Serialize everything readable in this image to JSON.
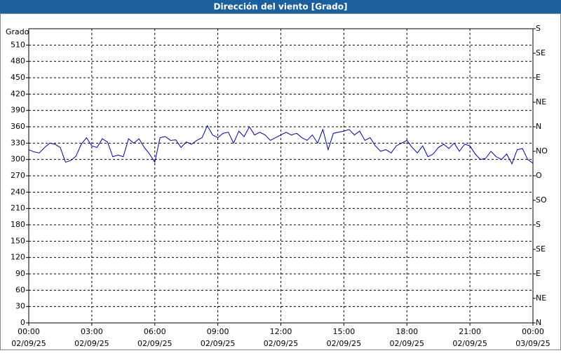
{
  "chart_data": {
    "type": "line",
    "title": "Dirección del viento [Grado]",
    "y_label": "Grado",
    "x": [
      0,
      0.25,
      0.5,
      0.75,
      1,
      1.25,
      1.5,
      1.75,
      2,
      2.25,
      2.5,
      2.75,
      3,
      3.25,
      3.5,
      3.75,
      4,
      4.25,
      4.5,
      4.75,
      5,
      5.25,
      5.5,
      5.75,
      6,
      6.25,
      6.5,
      6.75,
      7,
      7.25,
      7.5,
      7.75,
      8,
      8.25,
      8.5,
      8.75,
      9,
      9.25,
      9.5,
      9.75,
      10,
      10.25,
      10.5,
      10.75,
      11,
      11.25,
      11.5,
      11.75,
      12,
      12.25,
      12.5,
      12.75,
      13,
      13.25,
      13.5,
      13.75,
      14,
      14.25,
      14.5,
      14.75,
      15,
      15.25,
      15.5,
      15.75,
      16,
      16.25,
      16.5,
      16.75,
      17,
      17.25,
      17.5,
      17.75,
      18,
      18.25,
      18.5,
      18.75,
      19,
      19.25,
      19.5,
      19.75,
      20,
      20.25,
      20.5,
      20.75,
      21,
      21.25,
      21.5,
      21.75,
      22,
      22.25,
      22.5,
      22.75,
      23,
      23.25,
      23.5,
      23.75,
      24
    ],
    "series": [
      {
        "name": "Dirección del viento",
        "color": "#0000a0",
        "values": [
          318,
          314,
          312,
          322,
          330,
          328,
          322,
          295,
          298,
          306,
          328,
          340,
          325,
          322,
          338,
          332,
          305,
          308,
          305,
          338,
          330,
          338,
          322,
          310,
          295,
          340,
          342,
          335,
          336,
          322,
          332,
          328,
          335,
          340,
          362,
          345,
          340,
          348,
          350,
          330,
          352,
          342,
          360,
          345,
          350,
          345,
          335,
          340,
          345,
          350,
          345,
          348,
          340,
          335,
          345,
          330,
          355,
          318,
          348,
          350,
          352,
          355,
          345,
          352,
          335,
          340,
          325,
          315,
          318,
          312,
          325,
          330,
          335,
          322,
          312,
          325,
          305,
          310,
          322,
          328,
          320,
          330,
          315,
          328,
          325,
          310,
          300,
          302,
          315,
          305,
          300,
          310,
          292,
          318,
          320,
          300,
          293
        ]
      }
    ],
    "xlim": [
      0,
      24
    ],
    "xticks": [
      {
        "value": 0,
        "label": "00:00"
      },
      {
        "value": 3,
        "label": "03:00"
      },
      {
        "value": 6,
        "label": "06:00"
      },
      {
        "value": 9,
        "label": "09:00"
      },
      {
        "value": 12,
        "label": "12:00"
      },
      {
        "value": 15,
        "label": "15:00"
      },
      {
        "value": 18,
        "label": "18:00"
      },
      {
        "value": 21,
        "label": "21:00"
      },
      {
        "value": 24,
        "label": "00:00"
      }
    ],
    "xtick_dates": [
      "02/09/25",
      "02/09/25",
      "02/09/25",
      "02/09/25",
      "02/09/25",
      "02/09/25",
      "02/09/25",
      "02/09/25",
      "03/09/25"
    ],
    "ylim": [
      0,
      540
    ],
    "yticks": [
      0,
      30,
      60,
      90,
      120,
      150,
      180,
      210,
      240,
      270,
      300,
      330,
      360,
      390,
      420,
      450,
      480,
      510
    ],
    "y2lim": [
      0,
      540
    ],
    "y2ticks": [
      {
        "value": 0,
        "label": "N"
      },
      {
        "value": 45,
        "label": "NE"
      },
      {
        "value": 90,
        "label": "E"
      },
      {
        "value": 135,
        "label": "SE"
      },
      {
        "value": 180,
        "label": "S"
      },
      {
        "value": 225,
        "label": "SO"
      },
      {
        "value": 270,
        "label": "O"
      },
      {
        "value": 315,
        "label": "NO"
      },
      {
        "value": 360,
        "label": "N"
      },
      {
        "value": 405,
        "label": "NE"
      },
      {
        "value": 450,
        "label": "E"
      },
      {
        "value": 495,
        "label": "SE"
      },
      {
        "value": 540,
        "label": "S"
      }
    ],
    "grid": true
  }
}
